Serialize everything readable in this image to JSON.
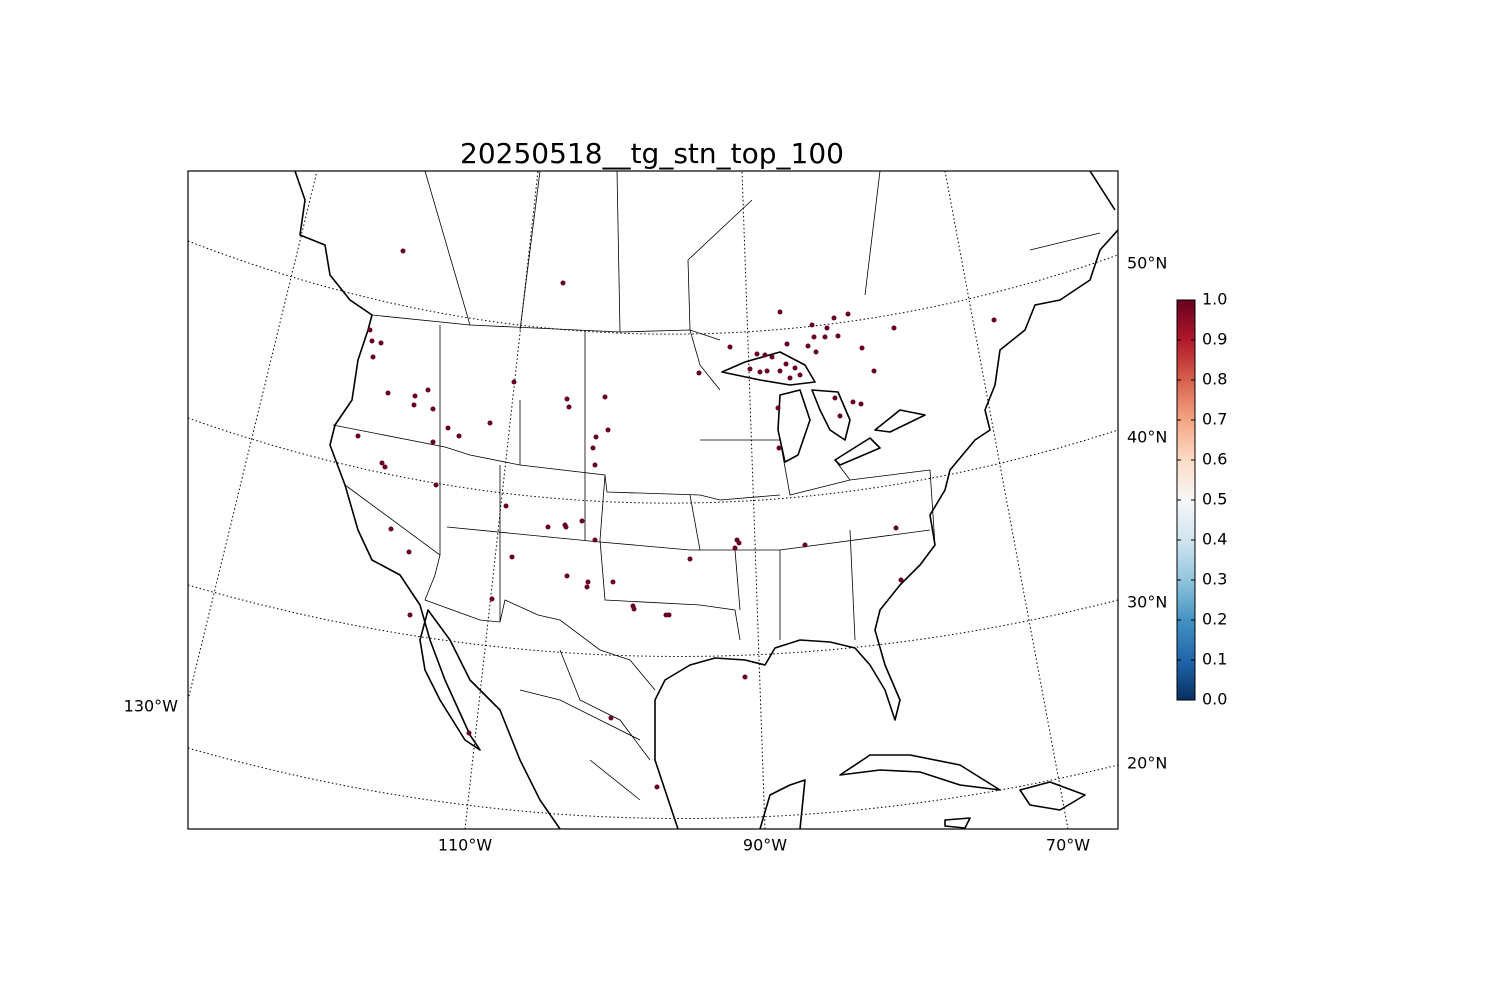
{
  "chart_data": {
    "type": "map",
    "title": "20250518__tg_stn_top_100",
    "lat_labels": [
      "50°N",
      "40°N",
      "30°N",
      "20°N"
    ],
    "lon_labels": [
      "130°W",
      "110°W",
      "90°W",
      "70°W"
    ],
    "colorbar": {
      "colormap": "RdBu_r",
      "lim": [
        0,
        1
      ],
      "ticks": [
        {
          "value": 0,
          "label": "0.0"
        },
        0.1,
        0.2,
        0.3,
        0.4,
        0.5,
        0.6,
        0.7,
        0.8,
        0.9,
        {
          "value": 1,
          "label": "1.0"
        }
      ]
    }
  }
}
